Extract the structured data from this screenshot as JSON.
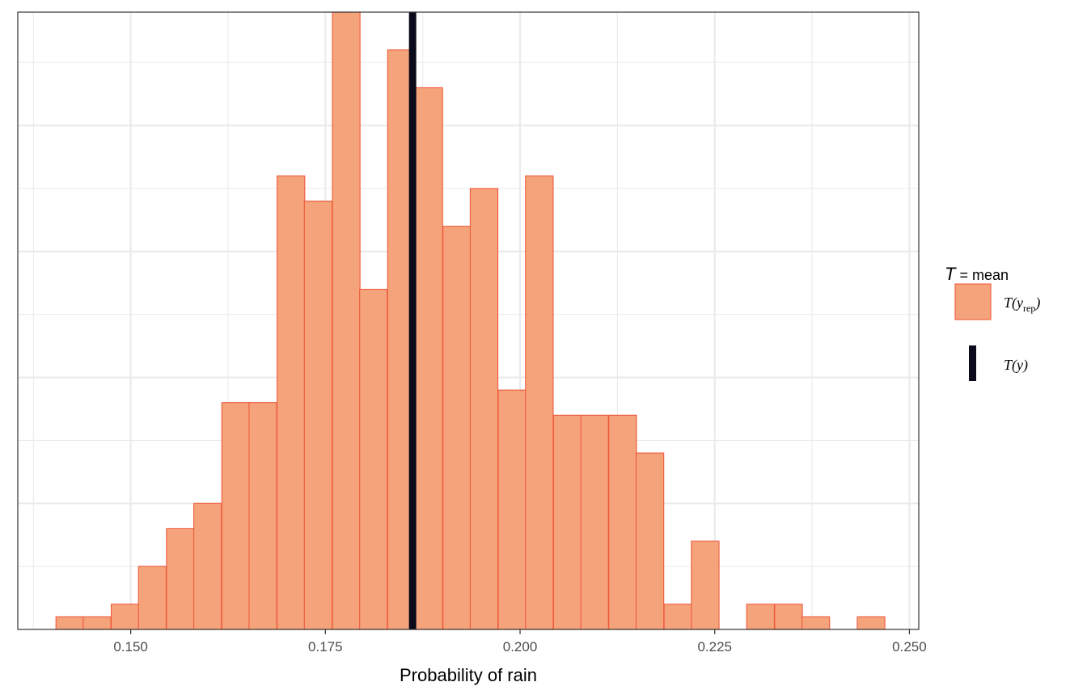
{
  "chart_data": {
    "type": "bar",
    "subtype": "histogram",
    "xlabel": "Probability of rain",
    "xlim": [
      0.1355,
      0.2512
    ],
    "x_ticks": [
      0.15,
      0.175,
      0.2,
      0.225,
      0.25
    ],
    "x_tick_labels": [
      "0.150",
      "0.175",
      "0.200",
      "0.225",
      "0.250"
    ],
    "y_ticks_shown": false,
    "ylim": [
      0,
      49
    ],
    "grid": true,
    "bin_width": 0.00355,
    "bins": [
      {
        "x0": 0.1404,
        "count": 1
      },
      {
        "x0": 0.1439,
        "count": 1
      },
      {
        "x0": 0.1475,
        "count": 2
      },
      {
        "x0": 0.151,
        "count": 5
      },
      {
        "x0": 0.1546,
        "count": 8
      },
      {
        "x0": 0.1581,
        "count": 10
      },
      {
        "x0": 0.1617,
        "count": 18
      },
      {
        "x0": 0.1652,
        "count": 18
      },
      {
        "x0": 0.1688,
        "count": 36
      },
      {
        "x0": 0.1723,
        "count": 34
      },
      {
        "x0": 0.1759,
        "count": 49
      },
      {
        "x0": 0.1794,
        "count": 27
      },
      {
        "x0": 0.183,
        "count": 46
      },
      {
        "x0": 0.1865,
        "count": 43
      },
      {
        "x0": 0.1901,
        "count": 32
      },
      {
        "x0": 0.1936,
        "count": 35
      },
      {
        "x0": 0.1972,
        "count": 19
      },
      {
        "x0": 0.2007,
        "count": 36
      },
      {
        "x0": 0.2043,
        "count": 17
      },
      {
        "x0": 0.2078,
        "count": 17
      },
      {
        "x0": 0.2114,
        "count": 17
      },
      {
        "x0": 0.2149,
        "count": 14
      },
      {
        "x0": 0.2185,
        "count": 2
      },
      {
        "x0": 0.222,
        "count": 7
      },
      {
        "x0": 0.2256,
        "count": 0
      },
      {
        "x0": 0.2291,
        "count": 2
      },
      {
        "x0": 0.2327,
        "count": 2
      },
      {
        "x0": 0.2362,
        "count": 1
      },
      {
        "x0": 0.2398,
        "count": 0
      },
      {
        "x0": 0.2433,
        "count": 1
      }
    ],
    "observed_stat": 0.1862,
    "colors": {
      "bar_fill": "#f4a37a",
      "bar_outline": "#f05a3c",
      "observed_line": "#0a0a1a",
      "grid": "#ebebeb",
      "panel_border": "#333333"
    },
    "legend": {
      "position": "right",
      "title_T": "T",
      "title_rest": " = mean",
      "items": [
        {
          "label_main": "T(y",
          "label_sub": "rep",
          "label_end": ")"
        },
        {
          "label_main": "T(y)",
          "label_sub": "",
          "label_end": ""
        }
      ]
    }
  }
}
